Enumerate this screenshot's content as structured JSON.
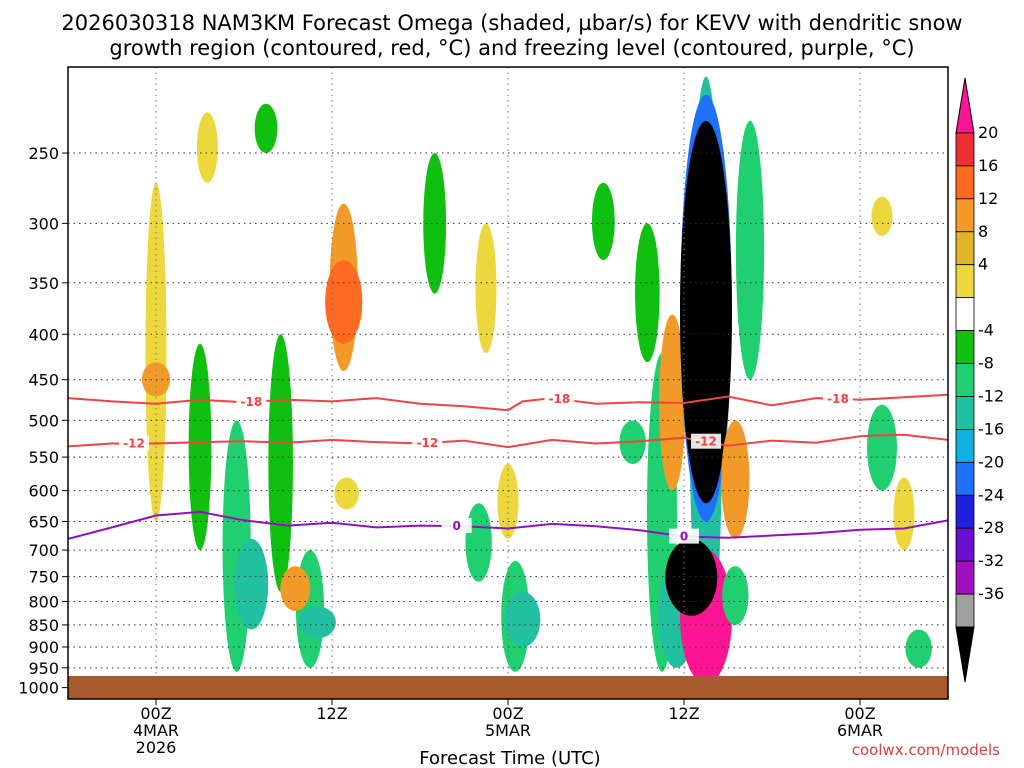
{
  "chart_data": {
    "type": "contour",
    "title_line1": "2026030318 NAM3KM Forecast Omega (shaded, µbar/s) for KEVV with dendritic snow",
    "title_line2": "growth region (contoured, red, °C) and freezing level (contoured, purple, °C)",
    "xlabel": "Forecast Time (UTC)",
    "credit": "coolwx.com/models",
    "x_range_hours": [
      -6,
      54
    ],
    "y_levels_hPa": [
      250,
      300,
      350,
      400,
      450,
      500,
      550,
      600,
      650,
      700,
      750,
      800,
      850,
      900,
      950,
      1000
    ],
    "y_range_hPa": [
      200,
      1030
    ],
    "x_ticks": [
      {
        "hour": 0,
        "lines": [
          "00Z",
          "4MAR",
          "2026"
        ]
      },
      {
        "hour": 12,
        "lines": [
          "12Z"
        ]
      },
      {
        "hour": 24,
        "lines": [
          "00Z",
          "5MAR"
        ]
      },
      {
        "hour": 36,
        "lines": [
          "12Z"
        ]
      },
      {
        "hour": 48,
        "lines": [
          "00Z",
          "6MAR"
        ]
      }
    ],
    "colorbar": {
      "labels": [
        "20",
        "16",
        "12",
        "8",
        "4",
        "-4",
        "-8",
        "-12",
        "-16",
        "-20",
        "-24",
        "-28",
        "-32",
        "-36"
      ],
      "colors": [
        "#ff1493",
        "#ee3030",
        "#ff6a20",
        "#f29a28",
        "#e2b428",
        "#ecd83c",
        "#ffffff",
        "#10c010",
        "#20d070",
        "#20c0a0",
        "#10b0e0",
        "#1e70ff",
        "#2020e0",
        "#6a10d0",
        "#a010c0",
        "#a0a0a0",
        "#000000"
      ]
    },
    "contours": [
      {
        "label": "-18",
        "color": "#ee4444",
        "points": [
          [
            -6,
            472
          ],
          [
            -3,
            476
          ],
          [
            0,
            479
          ],
          [
            3,
            474
          ],
          [
            6,
            477
          ],
          [
            9,
            474
          ],
          [
            12,
            476
          ],
          [
            15,
            472
          ],
          [
            18,
            479
          ],
          [
            21,
            482
          ],
          [
            24,
            487
          ],
          [
            25,
            476
          ],
          [
            27,
            472
          ],
          [
            30,
            479
          ],
          [
            33,
            477
          ],
          [
            36,
            478
          ],
          [
            39,
            470
          ],
          [
            42,
            481
          ],
          [
            45,
            472
          ],
          [
            48,
            474
          ],
          [
            51,
            471
          ],
          [
            54,
            468
          ]
        ],
        "label_hours": [
          6.5,
          27.5,
          46.5
        ]
      },
      {
        "label": "-12",
        "color": "#ee4444",
        "points": [
          [
            -6,
            535
          ],
          [
            -3,
            531
          ],
          [
            0,
            531
          ],
          [
            3,
            529
          ],
          [
            6,
            528
          ],
          [
            9,
            530
          ],
          [
            12,
            526
          ],
          [
            15,
            529
          ],
          [
            18,
            531
          ],
          [
            21,
            527
          ],
          [
            24,
            536
          ],
          [
            27,
            526
          ],
          [
            30,
            531
          ],
          [
            33,
            528
          ],
          [
            36,
            523
          ],
          [
            39,
            534
          ],
          [
            42,
            527
          ],
          [
            45,
            530
          ],
          [
            48,
            521
          ],
          [
            51,
            519
          ],
          [
            54,
            526
          ]
        ],
        "label_hours": [
          -1.5,
          18.5,
          37.5
        ]
      },
      {
        "label": "0",
        "color": "#9010c0",
        "points": [
          [
            -6,
            680
          ],
          [
            -3,
            660
          ],
          [
            0,
            640
          ],
          [
            3,
            634
          ],
          [
            6,
            648
          ],
          [
            9,
            657
          ],
          [
            12,
            652
          ],
          [
            15,
            660
          ],
          [
            18,
            657
          ],
          [
            21,
            658
          ],
          [
            24,
            662
          ],
          [
            27,
            654
          ],
          [
            30,
            658
          ],
          [
            33,
            665
          ],
          [
            36,
            676
          ],
          [
            39,
            678
          ],
          [
            42,
            674
          ],
          [
            45,
            670
          ],
          [
            48,
            664
          ],
          [
            51,
            662
          ],
          [
            54,
            648
          ]
        ],
        "label_hours": [
          20.5,
          36
        ]
      }
    ],
    "shading": [
      {
        "hour": 0,
        "p_top": 270,
        "p_bot": 650,
        "value": 5
      },
      {
        "hour": 0,
        "p_top": 430,
        "p_bot": 470,
        "value": 9
      },
      {
        "hour": 3.5,
        "p_top": 225,
        "p_bot": 270,
        "value": 5
      },
      {
        "hour": 3,
        "p_top": 410,
        "p_bot": 700,
        "value": -6
      },
      {
        "hour": 5.5,
        "p_top": 500,
        "p_bot": 960,
        "value": -9
      },
      {
        "hour": 6.5,
        "p_top": 680,
        "p_bot": 860,
        "value": -12
      },
      {
        "hour": 8.5,
        "p_top": 400,
        "p_bot": 780,
        "value": -7
      },
      {
        "hour": 10.5,
        "p_top": 700,
        "p_bot": 950,
        "value": -9
      },
      {
        "hour": 11,
        "p_top": 810,
        "p_bot": 880,
        "value": -14
      },
      {
        "hour": 7.5,
        "p_top": 220,
        "p_bot": 250,
        "value": -6
      },
      {
        "hour": 12.8,
        "p_top": 285,
        "p_bot": 440,
        "value": 9
      },
      {
        "hour": 12.8,
        "p_top": 330,
        "p_bot": 410,
        "value": 14
      },
      {
        "hour": 13,
        "p_top": 580,
        "p_bot": 630,
        "value": 7
      },
      {
        "hour": 9.5,
        "p_top": 730,
        "p_bot": 820,
        "value": 10
      },
      {
        "hour": 19,
        "p_top": 250,
        "p_bot": 360,
        "value": -6
      },
      {
        "hour": 22.5,
        "p_top": 300,
        "p_bot": 420,
        "value": 5
      },
      {
        "hour": 24,
        "p_top": 560,
        "p_bot": 680,
        "value": 5
      },
      {
        "hour": 22,
        "p_top": 620,
        "p_bot": 760,
        "value": -8
      },
      {
        "hour": 24.5,
        "p_top": 720,
        "p_bot": 960,
        "value": -9
      },
      {
        "hour": 25,
        "p_top": 780,
        "p_bot": 900,
        "value": -13
      },
      {
        "hour": 30.5,
        "p_top": 270,
        "p_bot": 330,
        "value": -6
      },
      {
        "hour": 33.5,
        "p_top": 300,
        "p_bot": 430,
        "value": -7
      },
      {
        "hour": 32.5,
        "p_top": 500,
        "p_bot": 560,
        "value": -8
      },
      {
        "hour": 34.5,
        "p_top": 420,
        "p_bot": 960,
        "value": -10
      },
      {
        "hour": 35.2,
        "p_top": 380,
        "p_bot": 600,
        "value": 8
      },
      {
        "hour": 35.5,
        "p_top": 720,
        "p_bot": 950,
        "value": -14
      },
      {
        "hour": 37.5,
        "p_top": 205,
        "p_bot": 980,
        "value": -12
      },
      {
        "hour": 37.5,
        "p_top": 215,
        "p_bot": 650,
        "value": -22
      },
      {
        "hour": 37.5,
        "p_top": 230,
        "p_bot": 620,
        "value": -40
      },
      {
        "hour": 37.5,
        "p_top": 700,
        "p_bot": 990,
        "value": 24
      },
      {
        "hour": 36.5,
        "p_top": 680,
        "p_bot": 830,
        "value": -40
      },
      {
        "hour": 39.5,
        "p_top": 500,
        "p_bot": 680,
        "value": 9
      },
      {
        "hour": 40.5,
        "p_top": 230,
        "p_bot": 450,
        "value": -9
      },
      {
        "hour": 39.5,
        "p_top": 730,
        "p_bot": 850,
        "value": -8
      },
      {
        "hour": 49.5,
        "p_top": 280,
        "p_bot": 310,
        "value": 5
      },
      {
        "hour": 49.5,
        "p_top": 480,
        "p_bot": 600,
        "value": -10
      },
      {
        "hour": 51,
        "p_top": 580,
        "p_bot": 700,
        "value": 5
      },
      {
        "hour": 52,
        "p_top": 860,
        "p_bot": 950,
        "value": -8
      }
    ]
  }
}
